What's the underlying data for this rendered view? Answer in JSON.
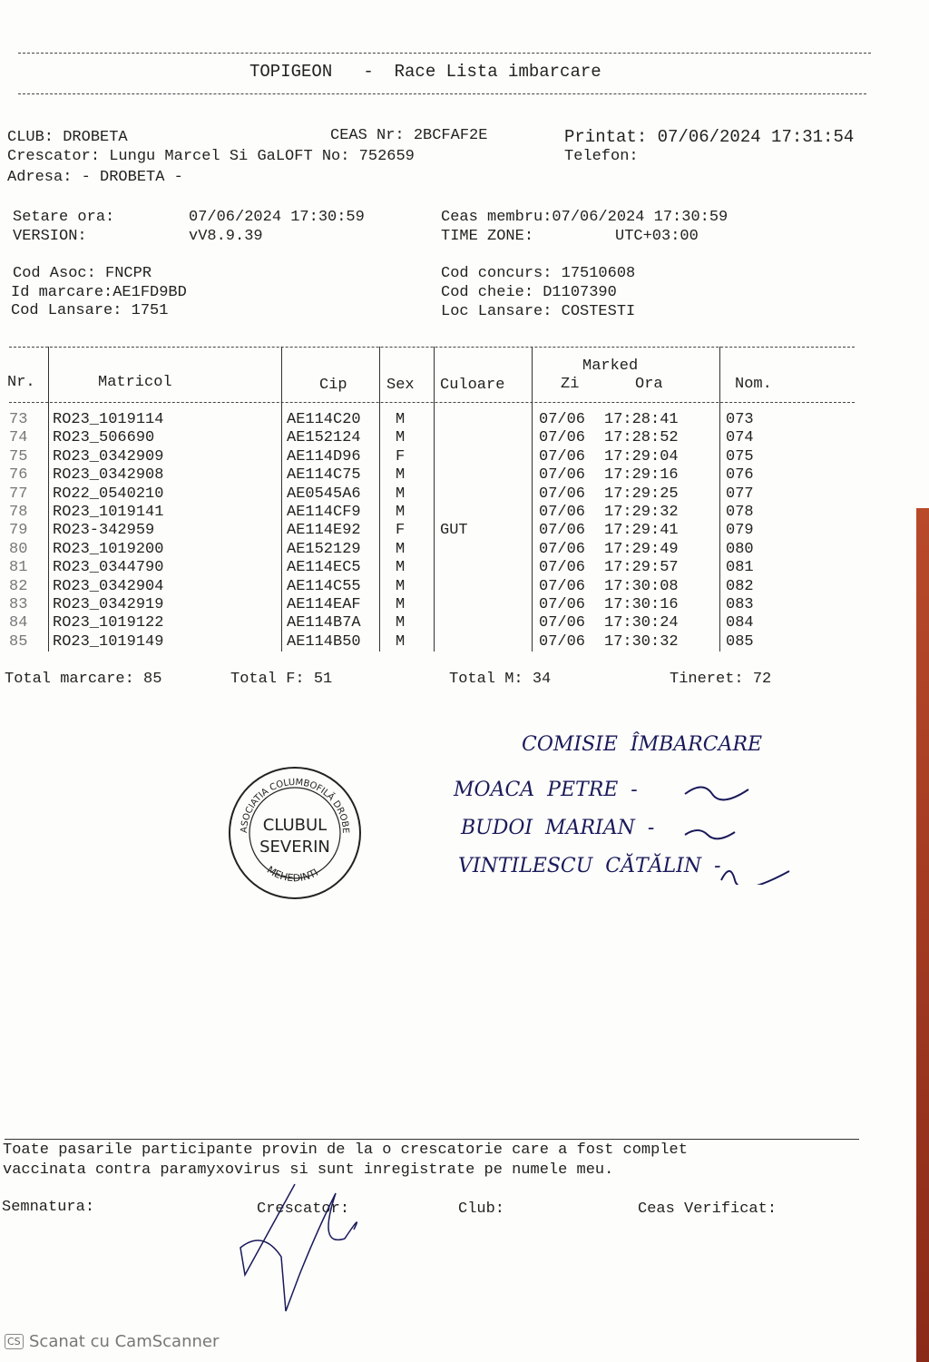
{
  "title": "TOPIGEON   -  Race Lista imbarcare",
  "info": {
    "club": "CLUB: DROBETA",
    "ceas_nr": "CEAS Nr: 2BCFAF2E",
    "printat": "Printat: 07/06/2024 17:31:54",
    "crescator": "Crescator: Lungu Marcel Si GaLOFT No: 752659",
    "telefon": "Telefon:",
    "adresa": "Adresa: - DROBETA -",
    "setare_label": "Setare ora:",
    "setare_value": "07/06/2024 17:30:59",
    "ceas_membru": "Ceas membru:07/06/2024 17:30:59",
    "version_label": "VERSION:",
    "version_value": "vV8.9.39",
    "timezone_label": "TIME ZONE:",
    "timezone_value": "UTC+03:00",
    "cod_asoc": "Cod Asoc: FNCPR",
    "cod_concurs": "Cod concurs: 17510608",
    "id_marcare": "Id marcare:AE1FD9BD",
    "cod_cheie": "Cod cheie: D1107390",
    "cod_lansare": "Cod Lansare: 1751",
    "loc_lansare": "Loc Lansare: COSTESTI"
  },
  "table": {
    "headers": {
      "nr": "Nr.",
      "matricol": "Matricol",
      "cip": "Cip",
      "sex": "Sex",
      "culoare": "Culoare",
      "marked": "Marked",
      "zi": "Zi",
      "ora": "Ora",
      "nom": "Nom."
    },
    "rows": [
      {
        "nr": "73",
        "matricol": "RO23_1019114",
        "cip": "AE114C20",
        "sex": "M",
        "culoare": "",
        "zi": "07/06",
        "ora": "17:28:41",
        "nom": "073"
      },
      {
        "nr": "74",
        "matricol": "RO23_506690",
        "cip": "AE152124",
        "sex": "M",
        "culoare": "",
        "zi": "07/06",
        "ora": "17:28:52",
        "nom": "074"
      },
      {
        "nr": "75",
        "matricol": "RO23_0342909",
        "cip": "AE114D96",
        "sex": "F",
        "culoare": "",
        "zi": "07/06",
        "ora": "17:29:04",
        "nom": "075"
      },
      {
        "nr": "76",
        "matricol": "RO23_0342908",
        "cip": "AE114C75",
        "sex": "M",
        "culoare": "",
        "zi": "07/06",
        "ora": "17:29:16",
        "nom": "076"
      },
      {
        "nr": "77",
        "matricol": "RO22_0540210",
        "cip": "AE0545A6",
        "sex": "M",
        "culoare": "",
        "zi": "07/06",
        "ora": "17:29:25",
        "nom": "077"
      },
      {
        "nr": "78",
        "matricol": "RO23_1019141",
        "cip": "AE114CF9",
        "sex": "M",
        "culoare": "",
        "zi": "07/06",
        "ora": "17:29:32",
        "nom": "078"
      },
      {
        "nr": "79",
        "matricol": "RO23-342959",
        "cip": "AE114E92",
        "sex": "F",
        "culoare": "GUT",
        "zi": "07/06",
        "ora": "17:29:41",
        "nom": "079"
      },
      {
        "nr": "80",
        "matricol": "RO23_1019200",
        "cip": "AE152129",
        "sex": "M",
        "culoare": "",
        "zi": "07/06",
        "ora": "17:29:49",
        "nom": "080"
      },
      {
        "nr": "81",
        "matricol": "RO23_0344790",
        "cip": "AE114EC5",
        "sex": "M",
        "culoare": "",
        "zi": "07/06",
        "ora": "17:29:57",
        "nom": "081"
      },
      {
        "nr": "82",
        "matricol": "RO23_0342904",
        "cip": "AE114C55",
        "sex": "M",
        "culoare": "",
        "zi": "07/06",
        "ora": "17:30:08",
        "nom": "082"
      },
      {
        "nr": "83",
        "matricol": "RO23_0342919",
        "cip": "AE114EAF",
        "sex": "M",
        "culoare": "",
        "zi": "07/06",
        "ora": "17:30:16",
        "nom": "083"
      },
      {
        "nr": "84",
        "matricol": "RO23_1019122",
        "cip": "AE114B7A",
        "sex": "M",
        "culoare": "",
        "zi": "07/06",
        "ora": "17:30:24",
        "nom": "084"
      },
      {
        "nr": "85",
        "matricol": "RO23_1019149",
        "cip": "AE114B50",
        "sex": "M",
        "culoare": "",
        "zi": "07/06",
        "ora": "17:30:32",
        "nom": "085"
      }
    ]
  },
  "totals": {
    "marcare": "Total marcare: 85",
    "f": "Total F: 51",
    "m": "Total M: 34",
    "tineret": "Tineret: 72"
  },
  "handwriting": {
    "line1": "COMISIE  ÎMBARCARE",
    "line2": "MOACA  PETRE  -",
    "line3": "BUDOI  MARIAN  -",
    "line4": "VINTILESCU  CĂTĂLIN  -"
  },
  "stamp": {
    "top": "ASOCIATIA COLUMBOFILĂ DROBETA",
    "center1": "CLUBUL",
    "center2": "SEVERIN",
    "bottom": "MEHEDINTI"
  },
  "footer": {
    "line1": "Toate pasarile participante provin de la o crescatorie care a fost complet",
    "line2": "vaccinata contra paramyxovirus si sunt inregistrate pe numele meu.",
    "semnatura": "Semnatura:",
    "crescator": "Crescator:",
    "club": "Club:",
    "ceas": "Ceas Verificat:"
  },
  "watermark": {
    "logo": "CS",
    "text": "Scanat cu CamScanner"
  }
}
